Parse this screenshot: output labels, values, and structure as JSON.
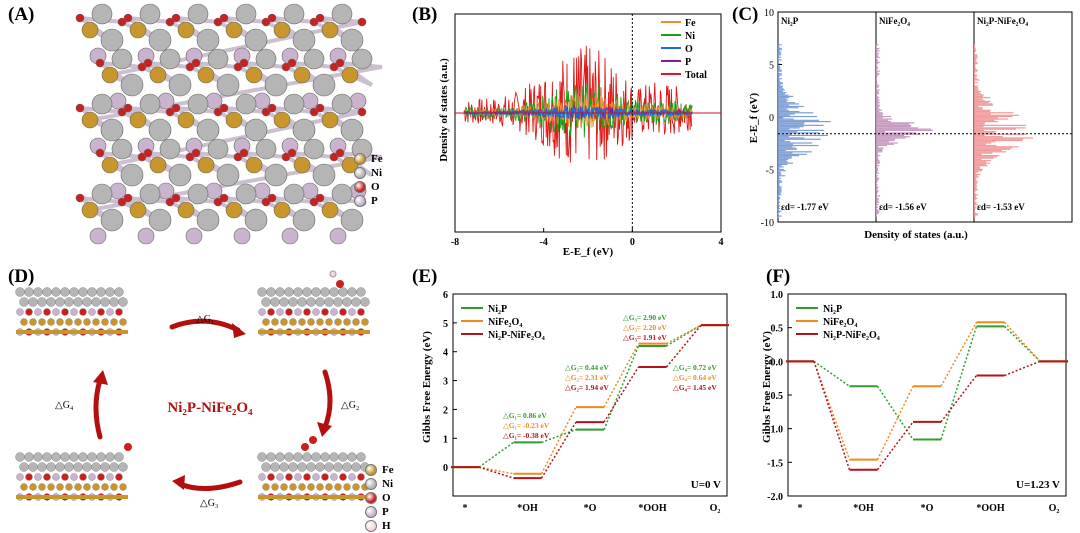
{
  "panels": {
    "A": "(A)",
    "B": "(B)",
    "C": "(C)",
    "D": "(D)",
    "E": "(E)",
    "F": "(F)"
  },
  "colors": {
    "Fe": "#e8902e",
    "Ni": "#1aa31a",
    "O": "#1c6fd6",
    "P": "#7b1fa2",
    "Total": "#e01818",
    "atom_Fe": "#c8962b",
    "atom_Ni": "#b5b5b5",
    "atom_O": "#cc2020",
    "atom_P": "#c9b3cf",
    "atom_H": "#f1d9d9",
    "ni2p": "#2e9e2e",
    "nife2o4": "#f08a1c",
    "hetero": "#b4121c",
    "cycle_arrow": "#b30f0f",
    "c_ni2p": "#7e9fd6",
    "c_nife2o4": "#c69ac0",
    "c_hetero": "#f19a9a"
  },
  "legend_A": [
    "Fe",
    "Ni",
    "O",
    "P"
  ],
  "legend_D": [
    "Fe",
    "Ni",
    "O",
    "P",
    "H"
  ],
  "cycle": {
    "center": "Ni₂P-NiFe₂O₄",
    "g1": "△G₁",
    "g2": "△G₂",
    "g3": "△G₃",
    "g4": "△G₄"
  },
  "panelB": {
    "ylabel": "Density of states (a.u.)",
    "xlabel": "E-E_f (eV)",
    "xticks": [
      "-8",
      "-4",
      "0",
      "4"
    ],
    "legend": [
      "Fe",
      "Ni",
      "O",
      "P",
      "Total"
    ]
  },
  "panelC": {
    "ylabel": "E-E_f (eV)",
    "xlabel": "Density of states (a.u.)",
    "yticks": [
      "10",
      "5",
      "0",
      "-5",
      "-10"
    ],
    "subplots": [
      {
        "title": "Ni₂P",
        "eps": "εd= -1.77 eV"
      },
      {
        "title": "NiFe₂O₄",
        "eps": "εd= -1.56 eV"
      },
      {
        "title": "Ni₂P-NiFe₂O₄",
        "eps": "εd= -1.53 eV"
      }
    ]
  },
  "chart_data": [
    {
      "type": "line",
      "title": "",
      "xlabel": "E-E_f (eV)",
      "ylabel": "Density of states (a.u.)",
      "xlim": [
        -8,
        4
      ],
      "series": [
        {
          "name": "Fe"
        },
        {
          "name": "Ni"
        },
        {
          "name": "O"
        },
        {
          "name": "P"
        },
        {
          "name": "Total"
        }
      ]
    },
    {
      "type": "bar",
      "xlabel": "Density of states (a.u.)",
      "ylabel": "E-E_f (eV)",
      "ylim": [
        -10,
        10
      ],
      "d_band_center": [
        {
          "name": "Ni₂P",
          "value": -1.77
        },
        {
          "name": "NiFe₂O₄",
          "value": -1.56
        },
        {
          "name": "Ni₂P-NiFe₂O₄",
          "value": -1.53
        }
      ]
    },
    {
      "type": "line",
      "xlabel": "",
      "ylabel": "Gibbs Free Energy (eV)",
      "ylim": [
        -1,
        6
      ],
      "categories": [
        "*",
        "*OH",
        "*O",
        "*OOH",
        "O₂"
      ],
      "condition": "U=0 V",
      "series": [
        {
          "name": "Ni₂P",
          "values": [
            0,
            0.86,
            1.3,
            4.2,
            4.92
          ]
        },
        {
          "name": "NiFe₂O₄",
          "values": [
            0,
            -0.23,
            2.08,
            4.28,
            4.92
          ]
        },
        {
          "name": "Ni₂P-NiFe₂O₄",
          "values": [
            0,
            -0.38,
            1.56,
            3.47,
            4.92
          ]
        }
      ],
      "annotations": [
        {
          "text": "△G₁= 0.86 eV",
          "series": "Ni₂P"
        },
        {
          "text": "△G₁= -0.23 eV",
          "series": "NiFe₂O₄"
        },
        {
          "text": "△G₁= -0.38 eV",
          "series": "Ni₂P-NiFe₂O₄"
        },
        {
          "text": "△G₂= 0.44 eV",
          "series": "Ni₂P"
        },
        {
          "text": "△G₂= 2.31 eV",
          "series": "NiFe₂O₄"
        },
        {
          "text": "△G₂= 1.94 eV",
          "series": "Ni₂P-NiFe₂O₄"
        },
        {
          "text": "△G₃= 2.90 eV",
          "series": "Ni₂P"
        },
        {
          "text": "△G₃= 2.20 eV",
          "series": "NiFe₂O₄"
        },
        {
          "text": "△G₃= 1.91 eV",
          "series": "Ni₂P-NiFe₂O₄"
        },
        {
          "text": "△G₄= 0.72 eV",
          "series": "Ni₂P"
        },
        {
          "text": "△G₄= 0.64 eV",
          "series": "NiFe₂O₄"
        },
        {
          "text": "△G₄= 1.45 eV",
          "series": "Ni₂P-NiFe₂O₄"
        }
      ]
    },
    {
      "type": "line",
      "xlabel": "",
      "ylabel": "Gibbs Free Energy (eV)",
      "ylim": [
        -2.0,
        1.0
      ],
      "categories": [
        "*",
        "*OH",
        "*O",
        "*OOH",
        "O₂"
      ],
      "condition": "U=1.23 V",
      "series": [
        {
          "name": "Ni₂P",
          "values": [
            0,
            -0.37,
            -1.16,
            0.52,
            0
          ]
        },
        {
          "name": "NiFe₂O₄",
          "values": [
            0,
            -1.46,
            -0.37,
            0.58,
            0
          ]
        },
        {
          "name": "Ni₂P-NiFe₂O₄",
          "values": [
            0,
            -1.61,
            -0.9,
            -0.21,
            0
          ]
        }
      ]
    }
  ],
  "panelE": {
    "yticks": [
      "0",
      "1",
      "2",
      "3",
      "4",
      "5",
      "6"
    ],
    "xticks": [
      "*",
      "*OH",
      "*O",
      "*OOH",
      "O₂"
    ],
    "ylabel": "Gibbs Free Energy (eV)",
    "cond": "U=0 V"
  },
  "panelF": {
    "yticks": [
      "1.0",
      "0.5",
      "0.0",
      "-0.5",
      "-1.0",
      "-1.5",
      "-2.0"
    ],
    "xticks": [
      "*",
      "*OH",
      "*O",
      "*OOH",
      "O₂"
    ],
    "ylabel": "Gibbs Free Energy (eV)",
    "cond": "U=1.23 V"
  }
}
